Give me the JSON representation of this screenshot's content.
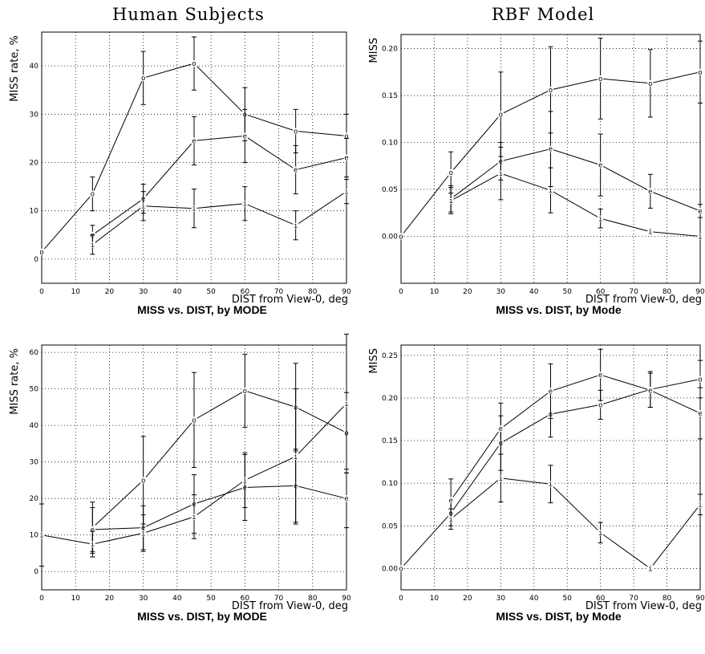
{
  "headers": {
    "left": "Human Subjects",
    "right": "RBF Model"
  },
  "chart_data": [
    {
      "type": "line",
      "ylabel": "MISS rate, %",
      "xlabel": "DIST from View-0, deg",
      "caption": "MISS vs. DIST, by MODE",
      "xlim": [
        0,
        90
      ],
      "ylim": [
        -5,
        47
      ],
      "xticks": [
        0,
        10,
        20,
        30,
        40,
        50,
        60,
        70,
        80,
        90
      ],
      "yticks": [
        0,
        10,
        20,
        30,
        40
      ],
      "ytick_labels": [
        "0",
        "10",
        "20",
        "30",
        "40"
      ],
      "series": [
        {
          "marker": "o",
          "x": [
            0,
            15,
            30,
            45,
            60,
            75,
            90
          ],
          "y": [
            1.5,
            13.5,
            37.5,
            40.5,
            30,
            26.5,
            25.5
          ],
          "err": [
            null,
            3.5,
            5.5,
            5.5,
            5.5,
            4.5,
            4.5
          ]
        },
        {
          "marker": "e",
          "x": [
            15,
            30,
            45,
            60,
            75,
            90
          ],
          "y": [
            5,
            12.5,
            24.5,
            25.5,
            18.5,
            21
          ],
          "err": [
            2,
            3,
            5,
            5.5,
            5,
            4
          ]
        },
        {
          "marker": "i",
          "x": [
            15,
            30,
            45,
            60,
            75,
            90
          ],
          "y": [
            3,
            11,
            10.5,
            11.5,
            7,
            14
          ],
          "err": [
            2,
            3,
            4,
            3.5,
            3,
            2.5
          ]
        }
      ]
    },
    {
      "type": "line",
      "ylabel": "MISS",
      "xlabel": "DIST from View-0, deg",
      "caption": "MISS vs. DIST, by Mode",
      "xlim": [
        0,
        90
      ],
      "ylim": [
        -0.05,
        0.215
      ],
      "xticks": [
        0,
        10,
        20,
        30,
        40,
        50,
        60,
        70,
        80,
        90
      ],
      "yticks": [
        0,
        0.05,
        0.1,
        0.15,
        0.2
      ],
      "ytick_labels": [
        "0.00",
        "0.05",
        "0.10",
        "0.15",
        "0.20"
      ],
      "series": [
        {
          "marker": "o",
          "x": [
            0,
            15,
            30,
            45,
            60,
            75,
            90
          ],
          "y": [
            0,
            0.068,
            0.13,
            0.156,
            0.168,
            0.163,
            0.175
          ],
          "err": [
            null,
            0.022,
            0.045,
            0.046,
            0.043,
            0.036,
            0.033
          ]
        },
        {
          "marker": "e",
          "x": [
            15,
            30,
            45,
            60,
            75,
            90
          ],
          "y": [
            0.04,
            0.08,
            0.093,
            0.076,
            0.048,
            0.027
          ],
          "err": [
            0.014,
            0.02,
            0.04,
            0.033,
            0.018,
            0.007
          ]
        },
        {
          "marker": "i",
          "x": [
            15,
            30,
            45,
            60,
            75,
            90
          ],
          "y": [
            0.038,
            0.067,
            0.049,
            0.019,
            0.005,
            0
          ],
          "err": [
            0.014,
            0.028,
            0.024,
            0.01,
            0.002,
            null
          ]
        }
      ]
    },
    {
      "type": "line",
      "ylabel": "MISS rate, %",
      "xlabel": "DIST from View-0, deg",
      "caption": "MISS vs. DIST, by MODE",
      "xlim": [
        0,
        90
      ],
      "ylim": [
        -5,
        62
      ],
      "xticks": [
        0,
        10,
        20,
        30,
        40,
        50,
        60,
        70,
        80,
        90
      ],
      "yticks": [
        0,
        10,
        20,
        30,
        40,
        50,
        60
      ],
      "ytick_labels": [
        "0",
        "10",
        "20",
        "30",
        "40",
        "50",
        "60"
      ],
      "series": [
        {
          "marker": "o",
          "x": [
            15,
            30,
            45,
            60,
            75,
            90
          ],
          "y": [
            12,
            25,
            41.5,
            49.5,
            45,
            38
          ],
          "err": [
            7,
            12,
            13,
            10,
            12,
            11
          ]
        },
        {
          "marker": "e",
          "x": [
            15,
            30,
            45,
            60,
            75,
            90
          ],
          "y": [
            11.5,
            12,
            18.5,
            23,
            23.5,
            20
          ],
          "err": [
            6,
            6,
            8,
            9,
            10,
            8
          ]
        },
        {
          "marker": "i",
          "x": [
            0,
            15,
            30,
            45,
            60,
            75,
            90
          ],
          "y": [
            10,
            7.5,
            10.5,
            15,
            25,
            31.5,
            46
          ],
          "err": [
            8.5,
            3.5,
            5,
            6,
            7.5,
            18.5,
            19
          ]
        }
      ]
    },
    {
      "type": "line",
      "ylabel": "MISS",
      "xlabel": "DIST from View-0, deg",
      "caption": "MISS vs. DIST, by Mode",
      "xlim": [
        0,
        90
      ],
      "ylim": [
        -0.025,
        0.262
      ],
      "xticks": [
        0,
        10,
        20,
        30,
        40,
        50,
        60,
        70,
        80,
        90
      ],
      "yticks": [
        0,
        0.05,
        0.1,
        0.15,
        0.2,
        0.25
      ],
      "ytick_labels": [
        "0.00",
        "0.05",
        "0.10",
        "0.15",
        "0.20",
        "0.25"
      ],
      "series": [
        {
          "marker": "o",
          "x": [
            0,
            15,
            30,
            45,
            60,
            75,
            90
          ],
          "y": [
            0,
            0.065,
            0.147,
            0.181,
            0.192,
            0.21,
            0.222
          ],
          "err": [
            null,
            0.015,
            0.032,
            0.027,
            0.017,
            0.021,
            0.022
          ]
        },
        {
          "marker": "e",
          "x": [
            15,
            30,
            45,
            60,
            75,
            90
          ],
          "y": [
            0.08,
            0.164,
            0.208,
            0.227,
            0.209,
            0.182
          ],
          "err": [
            0.025,
            0.03,
            0.032,
            0.03,
            0.02,
            0.03
          ]
        },
        {
          "marker": "i",
          "x": [
            15,
            30,
            45,
            60,
            75,
            90
          ],
          "y": [
            0.058,
            0.106,
            0.099,
            0.042,
            0,
            0.075
          ],
          "err": [
            0.012,
            0.028,
            0.022,
            0.012,
            null,
            0.012
          ]
        }
      ]
    }
  ]
}
